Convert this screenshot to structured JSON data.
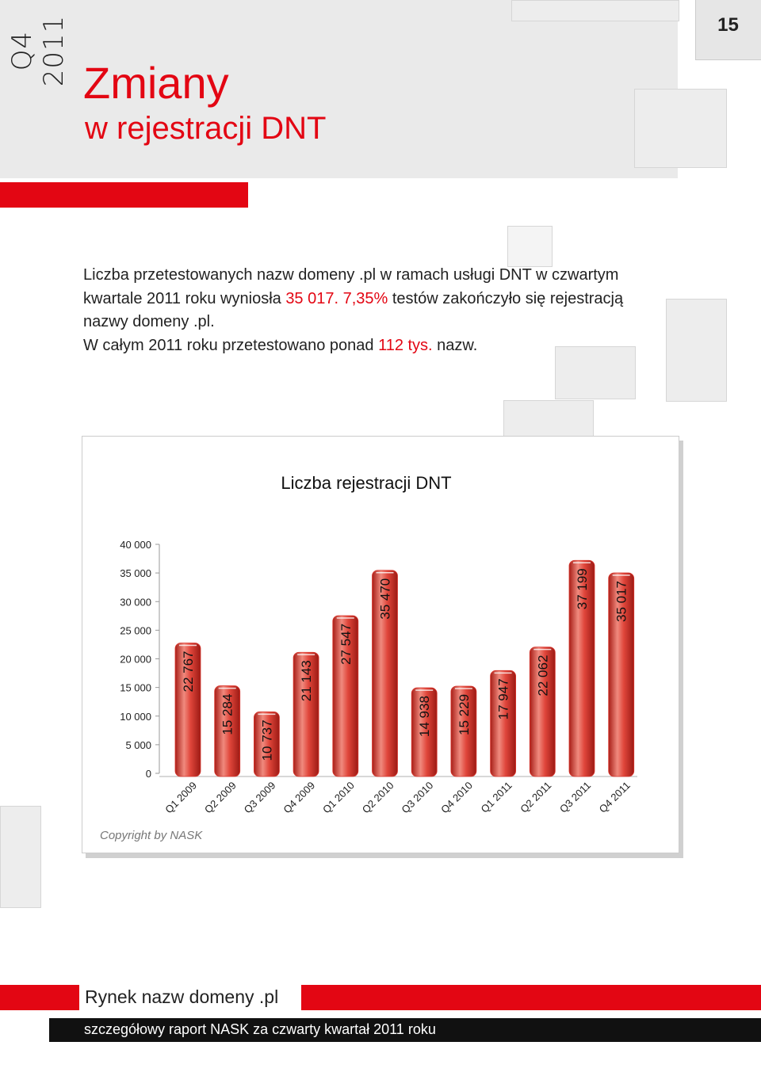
{
  "header": {
    "side_label": "Q4 2011",
    "page_number": "15",
    "title": "Zmiany",
    "subtitle": "w rejestracji DNT"
  },
  "intro": {
    "lines": [
      [
        {
          "text": "Liczba przetestowanych nazw domeny .pl w ramach usługi DNT w czwartym",
          "red": false
        }
      ],
      [
        {
          "text": "kwartale 2011 roku wyniosła ",
          "red": false
        },
        {
          "text": "35 017. 7,35%",
          "red": true
        },
        {
          "text": " testów zakończyło się rejestracją",
          "red": false
        }
      ],
      [
        {
          "text": "nazwy domeny .pl.",
          "red": false
        }
      ],
      [
        {
          "text": "W całym 2011 roku przetestowano ponad ",
          "red": false
        },
        {
          "text": "112 tys.",
          "red": true
        },
        {
          "text": " nazw.",
          "red": false
        }
      ]
    ]
  },
  "chart_data": {
    "type": "bar",
    "title": "Liczba rejestracji DNT",
    "categories": [
      "Q1 2009",
      "Q2 2009",
      "Q3 2009",
      "Q4 2009",
      "Q1 2010",
      "Q2 2010",
      "Q3 2010",
      "Q4 2010",
      "Q1 2011",
      "Q2 2011",
      "Q3 2011",
      "Q4 2011"
    ],
    "values": [
      22767,
      15284,
      10737,
      21143,
      27547,
      35470,
      14938,
      15229,
      17947,
      22062,
      37199,
      35017
    ],
    "value_labels": [
      "22 767",
      "15 284",
      "10 737",
      "21 143",
      "27 547",
      "35 470",
      "14 938",
      "15 229",
      "17 947",
      "22 062",
      "37 199",
      "35 017"
    ],
    "color": "#d9342b",
    "ylim": [
      0,
      40000
    ],
    "yticks": [
      0,
      {
        "value": 5000,
        "label": "5 000"
      },
      {
        "value": 10000,
        "label": "10 000"
      },
      {
        "value": 15000,
        "label": "15 000"
      },
      {
        "value": 20000,
        "label": "20 000"
      },
      {
        "value": 25000,
        "label": "25 000"
      },
      {
        "value": 30000,
        "label": "30 000"
      },
      {
        "value": 35000,
        "label": "35 000"
      },
      {
        "value": 40000,
        "label": "40 000"
      }
    ],
    "grid": false,
    "annotation": "Copyright by NASK"
  },
  "footer": {
    "section": "Rynek nazw domeny .pl",
    "report": "szczegółowy raport NASK za czwarty kwartał 2011 roku"
  }
}
